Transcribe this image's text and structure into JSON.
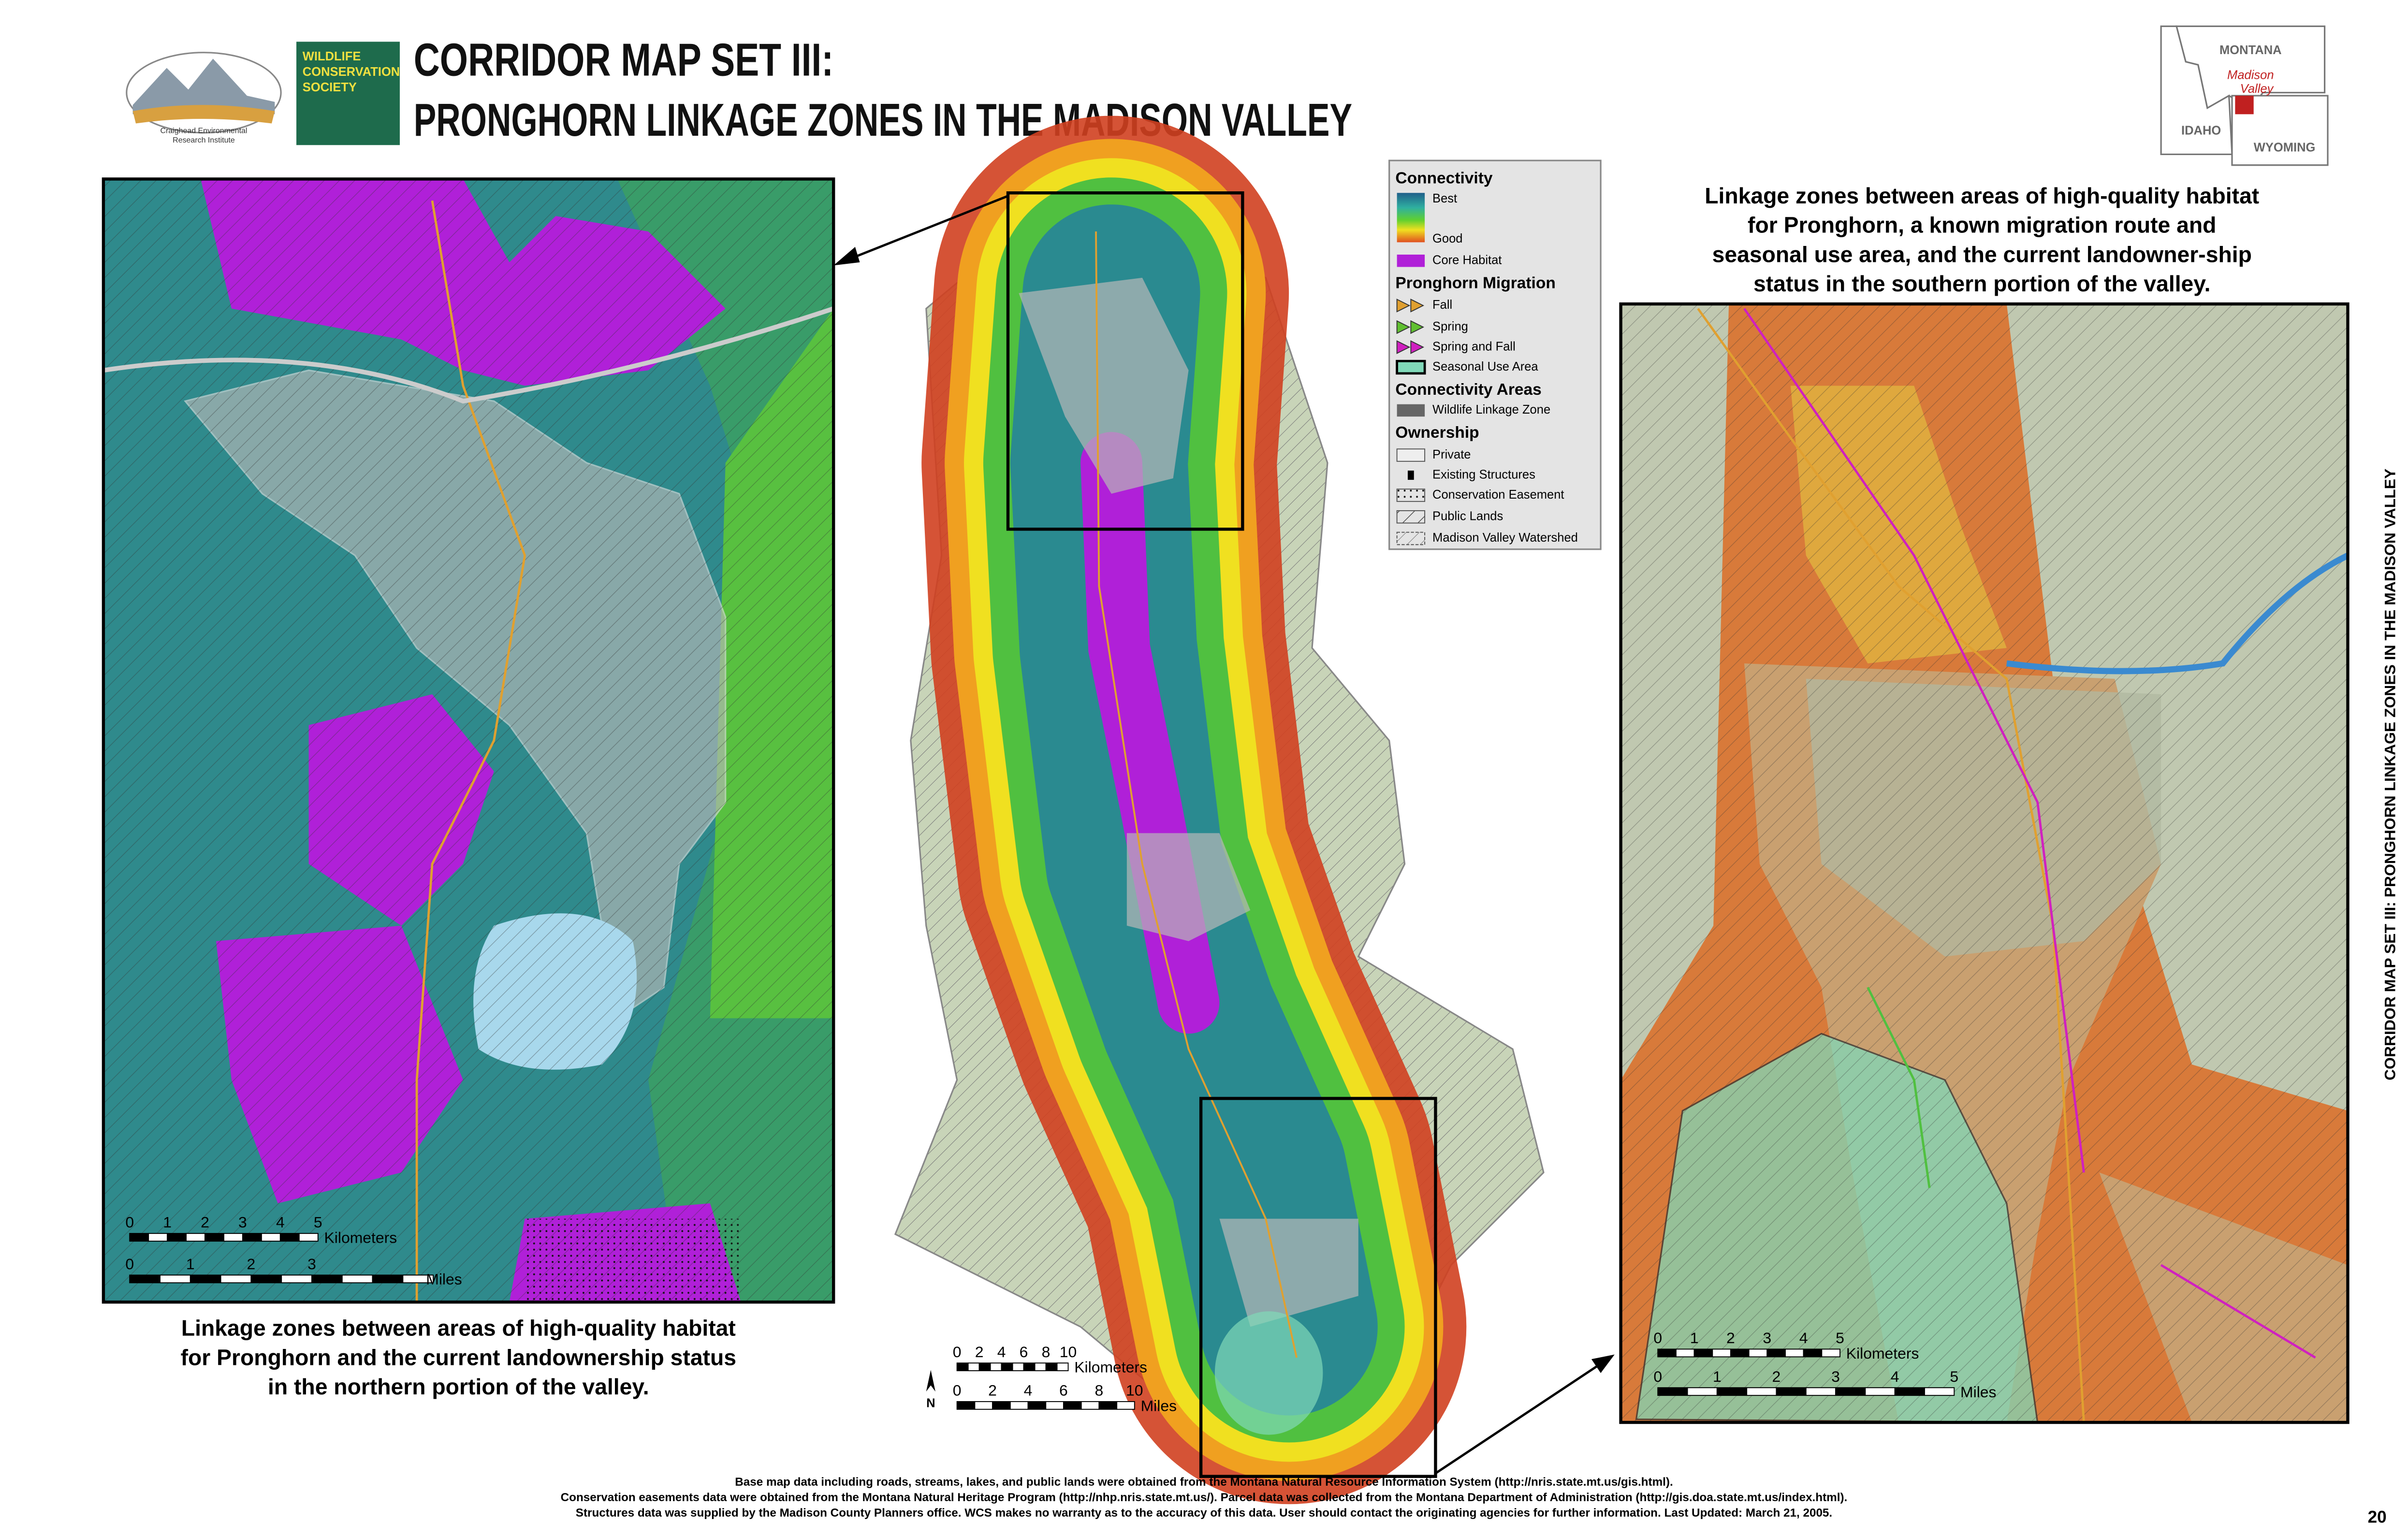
{
  "header": {
    "title_line1": "CORRIDOR MAP SET III:",
    "title_line2": "PRONGHORN LINKAGE ZONES IN THE MADISON VALLEY",
    "logo1_caption": [
      "Craighead Environmental",
      "Research Institute"
    ],
    "logo2_text": [
      "WILDLIFE",
      "CONSERVATION",
      "SOCIETY"
    ]
  },
  "locator": {
    "montana": "MONTANA",
    "valley": [
      "Madison",
      "Valley"
    ],
    "idaho": "IDAHO",
    "wyoming": "WYOMING"
  },
  "legend": {
    "sections": [
      {
        "title": "Connectivity",
        "items": [
          "Best",
          "Good",
          "Core Habitat"
        ]
      },
      {
        "title": "Pronghorn Migration",
        "items": [
          "Fall",
          "Spring",
          "Spring and Fall",
          "Seasonal Use Area"
        ]
      },
      {
        "title": "Connectivity Areas",
        "items": [
          "Wildlife Linkage Zone"
        ]
      },
      {
        "title": "Ownership",
        "items": [
          "Private",
          "Existing Structures",
          "Conservation Easement",
          "Public Lands",
          "Madison Valley Watershed"
        ]
      }
    ]
  },
  "captions": {
    "north": [
      "Linkage zones between areas of high-quality habitat",
      "for Pronghorn and the current landownership status",
      "in the northern portion of the valley."
    ],
    "south": [
      "Linkage zones between areas of high-quality habitat",
      "for Pronghorn, a known migration route and",
      "seasonal use area, and the current landowner-ship",
      "status in the southern portion of the valley."
    ]
  },
  "scale_bars": {
    "north": {
      "km_ticks": [
        0,
        1,
        2,
        3,
        4,
        5
      ],
      "km_unit": "Kilometers",
      "mi_ticks": [
        0,
        1,
        2,
        3
      ],
      "mi_unit": "Miles"
    },
    "center": {
      "km_ticks": [
        0,
        2,
        4,
        6,
        8,
        10
      ],
      "km_unit": "Kilometers",
      "mi_ticks": [
        0,
        2,
        4,
        6,
        8,
        10
      ],
      "mi_unit": "Miles",
      "north_arrow": "N"
    },
    "south": {
      "km_ticks": [
        0,
        1,
        2,
        3,
        4,
        5
      ],
      "km_unit": "Kilometers",
      "mi_ticks": [
        0,
        1,
        2,
        3,
        4,
        5
      ],
      "mi_unit": "Miles"
    }
  },
  "footer": [
    "Base map data including roads, streams, lakes, and public lands were obtained from the Montana Natural Resource Information System (http://nris.state.mt.us/gis.html).",
    "Conservation easements data were obtained from the Montana Natural Heritage Program (http://nhp.nris.state.mt.us/).  Parcel data was collected from the Montana Department of Administration (http://gis.doa.state.mt.us/index.html).",
    "Structures data was supplied by the Madison County Planners office. WCS makes no warranty as to the accuracy of this data.  User should contact the originating agencies for further information. Last Updated: March 21, 2005."
  ],
  "side_title": "CORRIDOR MAP SET III: PRONGHORN LINKAGE ZONES IN THE MADISON VALLEY",
  "page_number": "20"
}
